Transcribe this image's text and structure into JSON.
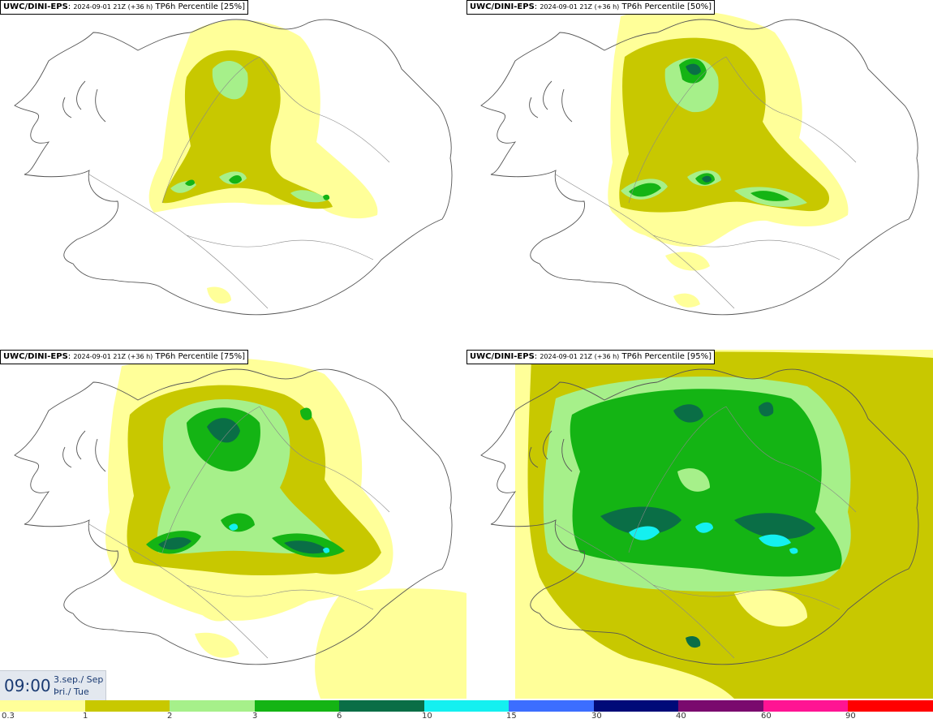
{
  "panels": [
    {
      "model": "UWC/DINI-EPS",
      "run": "2024-09-01 21Z (+36 h)",
      "field": "TP6h Percentile [25%]"
    },
    {
      "model": "UWC/DINI-EPS",
      "run": "2024-09-01 21Z (+36 h)",
      "field": "TP6h Percentile [50%]"
    },
    {
      "model": "UWC/DINI-EPS",
      "run": "2024-09-01 21Z (+36 h)",
      "field": "TP6h Percentile [75%]"
    },
    {
      "model": "UWC/DINI-EPS",
      "run": "2024-09-01 21Z (+36 h)",
      "field": "TP6h Percentile [95%]"
    }
  ],
  "valid_time": {
    "clock": "09:00",
    "date_line1": "3.sep./ Sep",
    "date_line2": "Þri./ Tue"
  },
  "legend": {
    "ticks": [
      "0.3",
      "1",
      "2",
      "3",
      "6",
      "10",
      "15",
      "30",
      "40",
      "60",
      "90"
    ],
    "colors": [
      "#ffff99",
      "#c8c800",
      "#a6f08a",
      "#14b414",
      "#0a6e46",
      "#14f0f0",
      "#3c6eff",
      "#000a78",
      "#7a0a6e",
      "#ff1493",
      "#ff0000"
    ]
  },
  "colors": {
    "background": "#ffffff",
    "coast": "#555555",
    "roads": "#888888"
  }
}
